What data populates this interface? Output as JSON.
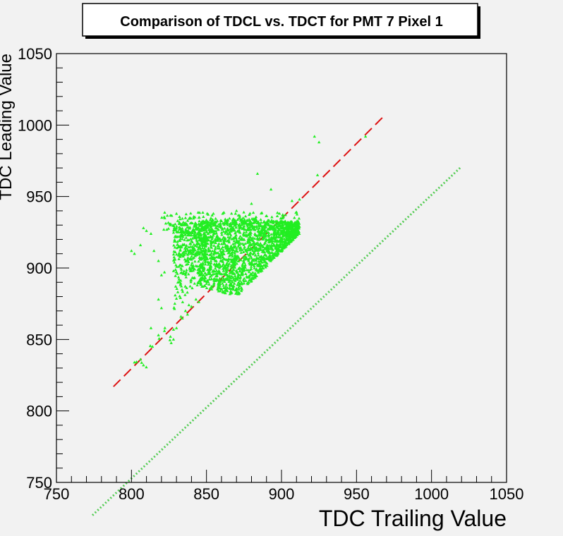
{
  "chart_data": {
    "type": "scatter",
    "title": "Comparison of TDCL vs. TDCT for PMT 7 Pixel 1",
    "xlabel": "TDC Trailing Value",
    "ylabel": "TDC Leading Value",
    "xlim": [
      750,
      1050
    ],
    "ylim": [
      750,
      1050
    ],
    "x_ticks": [
      "750",
      "800",
      "850",
      "900",
      "950",
      "1000",
      "1050"
    ],
    "y_ticks": [
      "750",
      "800",
      "850",
      "900",
      "950",
      "1000",
      "1050"
    ],
    "grid": false,
    "colors": {
      "points": "#22ee22",
      "fit_line": "#dd1111",
      "reference_line": "#55cc55",
      "frame": "#000000",
      "background": "#f2f2f2"
    },
    "series": [
      {
        "marker": "triangle",
        "cluster": {
          "x_range": [
            845,
            912
          ],
          "y_top": 935,
          "y_bottom": 880,
          "apex": [
            828,
            860
          ]
        },
        "tail": [
          [
            802,
            834
          ],
          [
            806,
            836
          ],
          [
            808,
            832
          ],
          [
            814,
            845
          ],
          [
            818,
            853
          ],
          [
            822,
            856
          ],
          [
            826,
            852
          ],
          [
            828,
            850
          ],
          [
            830,
            858
          ],
          [
            833,
            866
          ],
          [
            836,
            870
          ],
          [
            840,
            873
          ],
          [
            843,
            878
          ],
          [
            847,
            887
          ],
          [
            850,
            889
          ]
        ],
        "outliers": [
          [
            800,
            912
          ],
          [
            802,
            910
          ],
          [
            806,
            916
          ],
          [
            808,
            928
          ],
          [
            810,
            926
          ],
          [
            813,
            924
          ],
          [
            815,
            912
          ],
          [
            818,
            905
          ],
          [
            820,
            895
          ],
          [
            822,
            897
          ],
          [
            818,
            878
          ],
          [
            820,
            872
          ],
          [
            813,
            858
          ],
          [
            826,
            930
          ],
          [
            830,
            938
          ],
          [
            836,
            935
          ],
          [
            884,
            966
          ],
          [
            922,
            992
          ],
          [
            925,
            988
          ],
          [
            956,
            992
          ],
          [
            912,
            948
          ],
          [
            893,
            955
          ],
          [
            907,
            947
          ],
          [
            880,
            945
          ],
          [
            870,
            940
          ],
          [
            924,
            965
          ]
        ]
      }
    ],
    "lines": [
      {
        "style": "dashed",
        "points": [
          [
            788,
            817
          ],
          [
            968,
            1006
          ]
        ]
      },
      {
        "style": "dotted",
        "points": [
          [
            774,
            727
          ],
          [
            1020,
            971
          ]
        ]
      }
    ]
  }
}
